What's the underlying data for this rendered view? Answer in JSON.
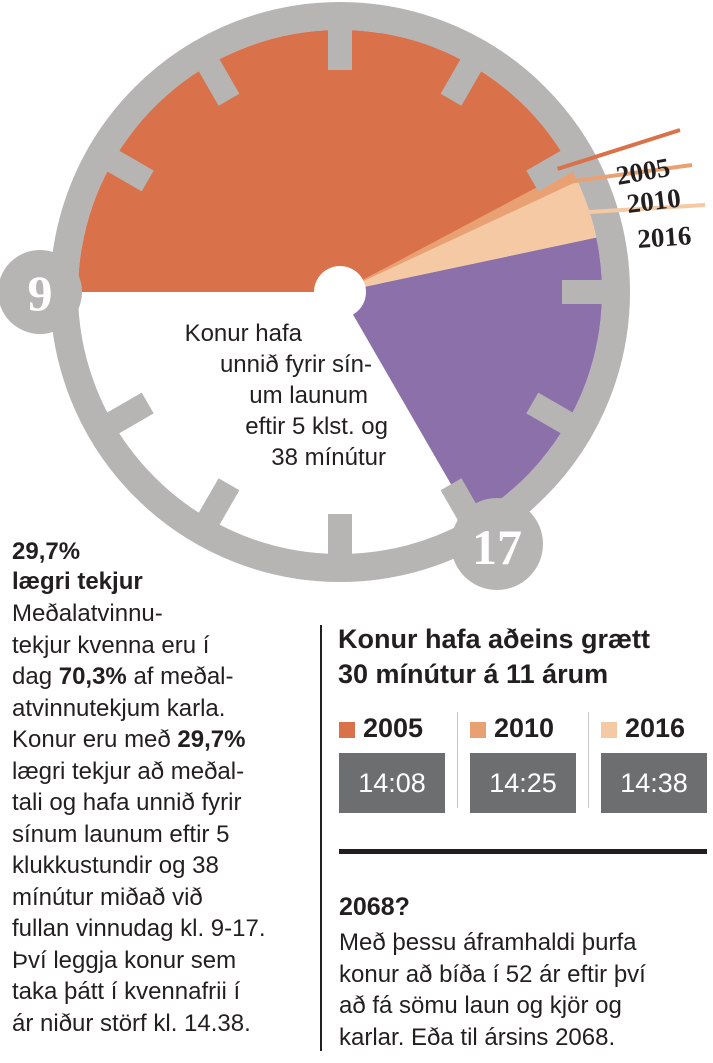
{
  "clock": {
    "start_label": "9",
    "end_label": "17",
    "center_caption_lines": [
      "Konur hafa",
      "unnið fyrir sín-",
      "um launum",
      "eftir 5 klst. og",
      "38 mínútur"
    ],
    "year_tags": [
      "2005",
      "2010",
      "2016"
    ],
    "colors": {
      "worked_for_pay": "#d9714a",
      "unpaid": "#8b70aa",
      "ring": "#b6b5b4",
      "year_2005": "#d9714a",
      "year_2010": "#e9a173",
      "year_2016": "#f4c9a4"
    }
  },
  "left_column": {
    "stat": "29,7%",
    "stat_label": "lægri tekjur",
    "body_lines": [
      "Meðalatvinnu-",
      "tekjur kvenna eru í",
      "dag |70,3%| af meðal-",
      "atvinnutekjum karla.",
      "Konur eru með |29,7%|",
      "lægri tekjur að meðal-",
      "tali og hafa unnið fyrir",
      "sínum launum eftir 5",
      "klukkustundir og 38",
      "mínútur miðað við",
      "fullan vinnudag kl. 9-17.",
      "Því leggja konur sem",
      "taka þátt í kvennafrii í",
      "ár niður störf kl. 14.38."
    ]
  },
  "right_column": {
    "title_lines": [
      "Konur hafa aðeins grætt",
      "30 mínútur á 11 árum"
    ],
    "years": [
      {
        "year": "2005",
        "time": "14:08",
        "color": "#d9714a"
      },
      {
        "year": "2010",
        "time": "14:25",
        "color": "#e9a173"
      },
      {
        "year": "2016",
        "time": "14:38",
        "color": "#f4c9a4"
      }
    ],
    "question_heading": "2068?",
    "question_lines": [
      "Með þessu áframhaldi þurfa",
      "konur að bíða í 52 ár eftir því",
      "að fá sömu laun og kjör og",
      "karlar. Eða til ársins 2068."
    ]
  }
}
